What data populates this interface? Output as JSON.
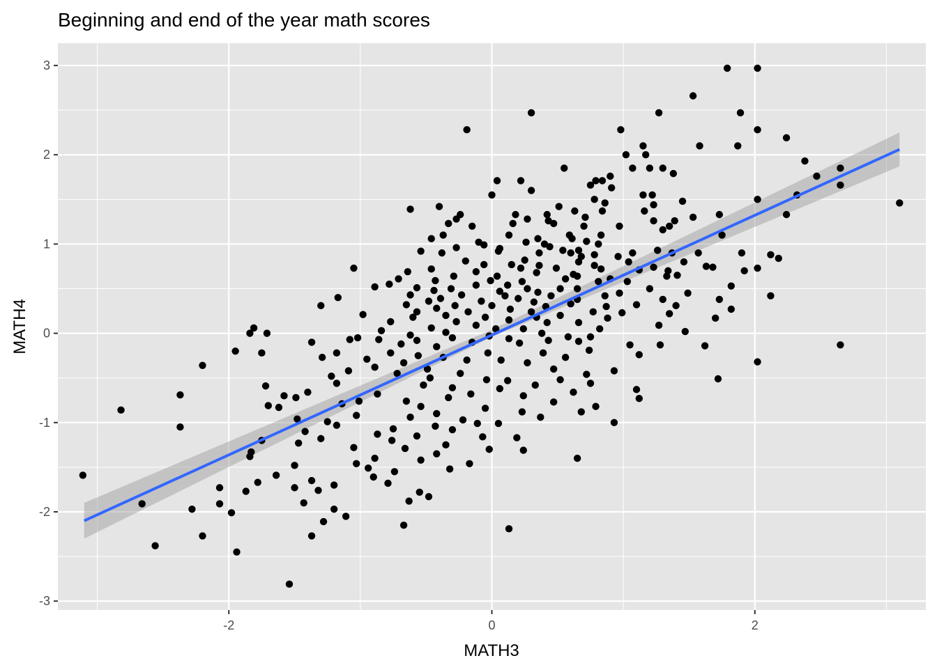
{
  "chart_data": {
    "type": "scatter",
    "title": "Beginning and end of the year math scores",
    "xlabel": "MATH3",
    "ylabel": "MATH4",
    "xlim": [
      -3.3,
      3.3
    ],
    "ylim": [
      -3.1,
      3.25
    ],
    "x_ticks": [
      -2,
      0,
      2
    ],
    "x_tick_labels": [
      "-2",
      "0",
      "2"
    ],
    "y_ticks": [
      -3,
      -2,
      -1,
      0,
      1,
      2,
      3
    ],
    "y_tick_labels": [
      "-3",
      "-2",
      "-1",
      "0",
      "1",
      "2",
      "3"
    ],
    "grid": true,
    "panel_background": "#e5e5e5",
    "grid_color": "#ffffff",
    "point_color": "#000000",
    "smooth": {
      "method": "linear fit with confidence band",
      "color": "#3366ff",
      "band_color": "#999999",
      "line": [
        [
          -3.1,
          -2.1
        ],
        [
          3.1,
          2.06
        ]
      ],
      "band_lower": [
        [
          -3.1,
          -2.3
        ],
        [
          0.0,
          -0.04
        ],
        [
          3.1,
          1.87
        ]
      ],
      "band_upper": [
        [
          -3.1,
          -1.9
        ],
        [
          0.0,
          0.04
        ],
        [
          3.1,
          2.25
        ]
      ]
    },
    "points": [
      [
        1.79,
        2.97
      ],
      [
        2.02,
        2.97
      ],
      [
        1.53,
        2.66
      ],
      [
        0.3,
        2.47
      ],
      [
        1.27,
        2.47
      ],
      [
        1.89,
        2.47
      ],
      [
        -0.19,
        2.28
      ],
      [
        0.98,
        2.28
      ],
      [
        2.02,
        2.28
      ],
      [
        2.24,
        2.19
      ],
      [
        1.15,
        2.1
      ],
      [
        1.58,
        2.1
      ],
      [
        1.87,
        2.1
      ],
      [
        1.02,
        2.0
      ],
      [
        1.17,
        2.0
      ],
      [
        2.38,
        1.93
      ],
      [
        1.07,
        1.85
      ],
      [
        0.55,
        1.85
      ],
      [
        1.2,
        1.85
      ],
      [
        1.3,
        1.85
      ],
      [
        2.65,
        1.85
      ],
      [
        1.38,
        1.79
      ],
      [
        0.9,
        1.76
      ],
      [
        2.47,
        1.76
      ],
      [
        0.04,
        1.71
      ],
      [
        0.22,
        1.71
      ],
      [
        0.79,
        1.71
      ],
      [
        0.84,
        1.71
      ],
      [
        0.75,
        1.66
      ],
      [
        2.65,
        1.66
      ],
      [
        0.91,
        1.63
      ],
      [
        0.3,
        1.6
      ],
      [
        0.0,
        1.55
      ],
      [
        1.15,
        1.55
      ],
      [
        1.22,
        1.55
      ],
      [
        2.32,
        1.55
      ],
      [
        0.78,
        1.5
      ],
      [
        2.02,
        1.5
      ],
      [
        1.45,
        1.48
      ],
      [
        3.1,
        1.46
      ],
      [
        0.86,
        1.46
      ],
      [
        1.23,
        1.44
      ],
      [
        0.51,
        1.42
      ],
      [
        -0.4,
        1.42
      ],
      [
        -0.62,
        1.39
      ],
      [
        0.63,
        1.37
      ],
      [
        0.84,
        1.37
      ],
      [
        1.16,
        1.37
      ],
      [
        -0.24,
        1.33
      ],
      [
        0.18,
        1.33
      ],
      [
        0.42,
        1.33
      ],
      [
        0.71,
        1.3
      ],
      [
        1.53,
        1.3
      ],
      [
        1.73,
        1.33
      ],
      [
        2.24,
        1.33
      ],
      [
        -0.27,
        1.28
      ],
      [
        0.27,
        1.28
      ],
      [
        0.43,
        1.26
      ],
      [
        1.23,
        1.26
      ],
      [
        1.39,
        1.26
      ],
      [
        -0.33,
        1.23
      ],
      [
        0.16,
        1.23
      ],
      [
        0.47,
        1.23
      ],
      [
        -0.15,
        1.2
      ],
      [
        0.7,
        1.2
      ],
      [
        0.97,
        1.2
      ],
      [
        1.35,
        1.2
      ],
      [
        1.3,
        1.16
      ],
      [
        -0.37,
        1.1
      ],
      [
        0.13,
        1.1
      ],
      [
        0.59,
        1.1
      ],
      [
        0.83,
        1.1
      ],
      [
        1.75,
        1.1
      ],
      [
        -0.46,
        1.06
      ],
      [
        0.35,
        1.06
      ],
      [
        0.61,
        1.06
      ],
      [
        0.72,
        1.03
      ],
      [
        0.26,
        1.02
      ],
      [
        -0.1,
        1.02
      ],
      [
        0.4,
        1.0
      ],
      [
        0.81,
        1.0
      ],
      [
        -0.06,
        0.99
      ],
      [
        0.44,
        0.97
      ],
      [
        -0.27,
        0.96
      ],
      [
        0.06,
        0.95
      ],
      [
        0.54,
        0.93
      ],
      [
        0.66,
        0.93
      ],
      [
        1.26,
        0.93
      ],
      [
        -0.54,
        0.92
      ],
      [
        0.05,
        0.92
      ],
      [
        -0.38,
        0.9
      ],
      [
        0.36,
        0.9
      ],
      [
        0.6,
        0.9
      ],
      [
        1.07,
        0.9
      ],
      [
        1.37,
        0.9
      ],
      [
        1.57,
        0.9
      ],
      [
        1.9,
        0.9
      ],
      [
        0.78,
        0.88
      ],
      [
        2.12,
        0.88
      ],
      [
        0.68,
        0.86
      ],
      [
        0.96,
        0.86
      ],
      [
        2.18,
        0.84
      ],
      [
        0.25,
        0.82
      ],
      [
        -0.2,
        0.81
      ],
      [
        0.66,
        0.8
      ],
      [
        1.04,
        0.8
      ],
      [
        1.46,
        0.8
      ],
      [
        1.63,
        0.75
      ],
      [
        -0.06,
        0.77
      ],
      [
        0.15,
        0.77
      ],
      [
        0.36,
        0.76
      ],
      [
        0.78,
        0.76
      ],
      [
        1.23,
        0.74
      ],
      [
        1.68,
        0.74
      ],
      [
        -0.46,
        0.72
      ],
      [
        -1.05,
        0.73
      ],
      [
        0.22,
        0.73
      ],
      [
        0.49,
        0.73
      ],
      [
        2.02,
        0.73
      ],
      [
        0.83,
        0.72
      ],
      [
        1.12,
        0.71
      ],
      [
        1.34,
        0.7
      ],
      [
        1.92,
        0.7
      ],
      [
        -0.64,
        0.69
      ],
      [
        -0.12,
        0.69
      ],
      [
        0.34,
        0.68
      ],
      [
        0.62,
        0.66
      ],
      [
        1.41,
        0.65
      ],
      [
        -0.29,
        0.64
      ],
      [
        0.04,
        0.64
      ],
      [
        0.65,
        0.64
      ],
      [
        1.33,
        0.64
      ],
      [
        -0.71,
        0.61
      ],
      [
        0.56,
        0.61
      ],
      [
        0.9,
        0.61
      ],
      [
        -0.43,
        0.59
      ],
      [
        -0.01,
        0.59
      ],
      [
        0.81,
        0.58
      ],
      [
        1.03,
        0.58
      ],
      [
        0.23,
        0.58
      ],
      [
        -0.78,
        0.55
      ],
      [
        -0.12,
        0.54
      ],
      [
        0.12,
        0.54
      ],
      [
        1.82,
        0.53
      ],
      [
        -0.57,
        0.51
      ],
      [
        -0.31,
        0.5
      ],
      [
        0.27,
        0.5
      ],
      [
        0.52,
        0.5
      ],
      [
        0.65,
        0.5
      ],
      [
        1.2,
        0.5
      ],
      [
        -0.89,
        0.52
      ],
      [
        -0.44,
        0.48
      ],
      [
        0.06,
        0.47
      ],
      [
        0.35,
        0.46
      ],
      [
        0.97,
        0.45
      ],
      [
        1.49,
        0.45
      ],
      [
        -0.62,
        0.43
      ],
      [
        -0.23,
        0.43
      ],
      [
        0.1,
        0.42
      ],
      [
        0.45,
        0.42
      ],
      [
        0.86,
        0.42
      ],
      [
        2.12,
        0.42
      ],
      [
        -0.39,
        0.39
      ],
      [
        0.2,
        0.39
      ],
      [
        0.65,
        0.38
      ],
      [
        1.3,
        0.38
      ],
      [
        1.73,
        0.38
      ],
      [
        -1.17,
        0.4
      ],
      [
        -0.48,
        0.36
      ],
      [
        -0.08,
        0.36
      ],
      [
        0.32,
        0.35
      ],
      [
        0.6,
        0.33
      ],
      [
        1.1,
        0.32
      ],
      [
        -1.3,
        0.31
      ],
      [
        -0.65,
        0.32
      ],
      [
        -0.28,
        0.31
      ],
      [
        0.0,
        0.31
      ],
      [
        0.41,
        0.3
      ],
      [
        0.87,
        0.3
      ],
      [
        1.4,
        0.31
      ],
      [
        -0.42,
        0.28
      ],
      [
        0.14,
        0.27
      ],
      [
        1.82,
        0.27
      ],
      [
        -0.57,
        0.24
      ],
      [
        -0.18,
        0.24
      ],
      [
        0.3,
        0.24
      ],
      [
        0.77,
        0.24
      ],
      [
        0.99,
        0.23
      ],
      [
        1.35,
        0.22
      ],
      [
        -0.98,
        0.21
      ],
      [
        -0.35,
        0.2
      ],
      [
        0.52,
        0.2
      ],
      [
        -0.6,
        0.18
      ],
      [
        -0.05,
        0.18
      ],
      [
        0.34,
        0.18
      ],
      [
        0.88,
        0.17
      ],
      [
        1.7,
        0.17
      ],
      [
        0.13,
        0.15
      ],
      [
        -0.77,
        0.13
      ],
      [
        -0.27,
        0.13
      ],
      [
        0.42,
        0.12
      ],
      [
        0.66,
        0.12
      ],
      [
        1.27,
        0.09
      ],
      [
        -0.12,
        0.09
      ],
      [
        -1.81,
        0.06
      ],
      [
        -0.46,
        0.06
      ],
      [
        0.03,
        0.05
      ],
      [
        0.24,
        0.05
      ],
      [
        0.82,
        0.05
      ],
      [
        -0.84,
        0.03
      ],
      [
        -1.84,
        0.0
      ],
      [
        -1.71,
        0.0
      ],
      [
        -0.35,
        0.01
      ],
      [
        0.38,
        0.0
      ],
      [
        1.47,
        0.02
      ],
      [
        -0.62,
        -0.02
      ],
      [
        -0.02,
        -0.03
      ],
      [
        0.58,
        -0.04
      ],
      [
        0.75,
        -0.04
      ],
      [
        -1.02,
        -0.05
      ],
      [
        -0.3,
        -0.05
      ],
      [
        0.13,
        -0.06
      ],
      [
        -1.08,
        -0.07
      ],
      [
        -0.86,
        -0.07
      ],
      [
        -0.57,
        -0.08
      ],
      [
        0.43,
        -0.08
      ],
      [
        0.66,
        -0.09
      ],
      [
        -1.37,
        -0.1
      ],
      [
        -0.15,
        -0.1
      ],
      [
        -0.69,
        -0.12
      ],
      [
        0.21,
        -0.11
      ],
      [
        1.05,
        -0.13
      ],
      [
        1.28,
        -0.13
      ],
      [
        1.62,
        -0.14
      ],
      [
        2.65,
        -0.13
      ],
      [
        -0.42,
        -0.15
      ],
      [
        -1.95,
        -0.2
      ],
      [
        -1.75,
        -0.22
      ],
      [
        0.74,
        -0.19
      ],
      [
        -1.18,
        -0.22
      ],
      [
        -0.77,
        -0.22
      ],
      [
        -0.03,
        -0.22
      ],
      [
        0.39,
        -0.22
      ],
      [
        -0.56,
        -0.25
      ],
      [
        1.12,
        -0.24
      ],
      [
        -1.29,
        -0.27
      ],
      [
        -0.37,
        -0.27
      ],
      [
        0.56,
        -0.27
      ],
      [
        -0.95,
        -0.29
      ],
      [
        -0.19,
        -0.3
      ],
      [
        0.07,
        -0.3
      ],
      [
        2.02,
        -0.32
      ],
      [
        -0.67,
        -0.33
      ],
      [
        0.27,
        -0.33
      ],
      [
        -2.2,
        -0.36
      ],
      [
        -0.89,
        -0.38
      ],
      [
        -0.49,
        -0.4
      ],
      [
        0.47,
        -0.4
      ],
      [
        -1.09,
        -0.42
      ],
      [
        0.93,
        -0.42
      ],
      [
        -0.72,
        -0.45
      ],
      [
        -0.24,
        -0.45
      ],
      [
        0.72,
        -0.46
      ],
      [
        -1.22,
        -0.48
      ],
      [
        -0.47,
        -0.5
      ],
      [
        1.72,
        -0.51
      ],
      [
        -0.04,
        -0.52
      ],
      [
        0.52,
        -0.52
      ],
      [
        0.12,
        -0.53
      ],
      [
        -1.18,
        -0.56
      ],
      [
        0.75,
        -0.56
      ],
      [
        -0.52,
        -0.58
      ],
      [
        0.33,
        -0.58
      ],
      [
        -1.72,
        -0.59
      ],
      [
        -0.3,
        -0.61
      ],
      [
        0.06,
        -0.62
      ],
      [
        1.1,
        -0.63
      ],
      [
        -1.4,
        -0.66
      ],
      [
        0.62,
        -0.66
      ],
      [
        -0.87,
        -0.68
      ],
      [
        -0.16,
        -0.68
      ],
      [
        -1.58,
        -0.7
      ],
      [
        0.24,
        -0.7
      ],
      [
        -1.49,
        -0.72
      ],
      [
        -0.33,
        -0.72
      ],
      [
        1.12,
        -0.73
      ],
      [
        -2.37,
        -0.69
      ],
      [
        -1.01,
        -0.76
      ],
      [
        -0.65,
        -0.76
      ],
      [
        0.47,
        -0.77
      ],
      [
        -1.14,
        -0.79
      ],
      [
        -1.7,
        -0.81
      ],
      [
        -0.54,
        -0.82
      ],
      [
        0.79,
        -0.82
      ],
      [
        -1.62,
        -0.83
      ],
      [
        -0.05,
        -0.84
      ],
      [
        -2.82,
        -0.86
      ],
      [
        0.23,
        -0.88
      ],
      [
        0.68,
        -0.88
      ],
      [
        -0.42,
        -0.9
      ],
      [
        -1.03,
        -0.92
      ],
      [
        -0.62,
        -0.94
      ],
      [
        0.37,
        -0.94
      ],
      [
        -1.48,
        -0.96
      ],
      [
        -0.22,
        -0.97
      ],
      [
        -1.25,
        -0.99
      ],
      [
        0.93,
        -1.0
      ],
      [
        -0.11,
        -1.01
      ],
      [
        0.05,
        -1.01
      ],
      [
        -1.18,
        -1.03
      ],
      [
        -0.43,
        -1.04
      ],
      [
        -2.37,
        -1.05
      ],
      [
        -0.75,
        -1.07
      ],
      [
        -0.3,
        -1.08
      ],
      [
        -1.42,
        -1.1
      ],
      [
        -0.87,
        -1.13
      ],
      [
        -0.57,
        -1.15
      ],
      [
        -0.07,
        -1.16
      ],
      [
        0.19,
        -1.17
      ],
      [
        -1.3,
        -1.18
      ],
      [
        -0.76,
        -1.2
      ],
      [
        -1.75,
        -1.2
      ],
      [
        -1.47,
        -1.23
      ],
      [
        -0.35,
        -1.25
      ],
      [
        -1.05,
        -1.28
      ],
      [
        -0.66,
        -1.29
      ],
      [
        -0.02,
        -1.3
      ],
      [
        0.24,
        -1.31
      ],
      [
        -1.83,
        -1.33
      ],
      [
        -0.42,
        -1.35
      ],
      [
        -1.84,
        -1.38
      ],
      [
        -0.89,
        -1.4
      ],
      [
        0.65,
        -1.4
      ],
      [
        -0.54,
        -1.42
      ],
      [
        -1.03,
        -1.46
      ],
      [
        -0.17,
        -1.46
      ],
      [
        -1.5,
        -1.48
      ],
      [
        -0.94,
        -1.51
      ],
      [
        -0.32,
        -1.52
      ],
      [
        -0.74,
        -1.55
      ],
      [
        -1.64,
        -1.59
      ],
      [
        -3.11,
        -1.59
      ],
      [
        -0.9,
        -1.61
      ],
      [
        -1.37,
        -1.65
      ],
      [
        -1.78,
        -1.67
      ],
      [
        -0.79,
        -1.68
      ],
      [
        -1.2,
        -1.7
      ],
      [
        -2.07,
        -1.73
      ],
      [
        -1.5,
        -1.73
      ],
      [
        -1.32,
        -1.76
      ],
      [
        -1.87,
        -1.77
      ],
      [
        -0.55,
        -1.78
      ],
      [
        -0.48,
        -1.83
      ],
      [
        -0.63,
        -1.88
      ],
      [
        -1.43,
        -1.9
      ],
      [
        -2.07,
        -1.91
      ],
      [
        -2.66,
        -1.91
      ],
      [
        -1.2,
        -1.97
      ],
      [
        -2.28,
        -1.97
      ],
      [
        -1.98,
        -2.01
      ],
      [
        -1.11,
        -2.05
      ],
      [
        -1.28,
        -2.11
      ],
      [
        -0.67,
        -2.15
      ],
      [
        0.13,
        -2.19
      ],
      [
        -1.37,
        -2.27
      ],
      [
        -2.2,
        -2.27
      ],
      [
        -2.56,
        -2.38
      ],
      [
        -1.94,
        -2.45
      ],
      [
        -1.54,
        -2.81
      ]
    ]
  }
}
